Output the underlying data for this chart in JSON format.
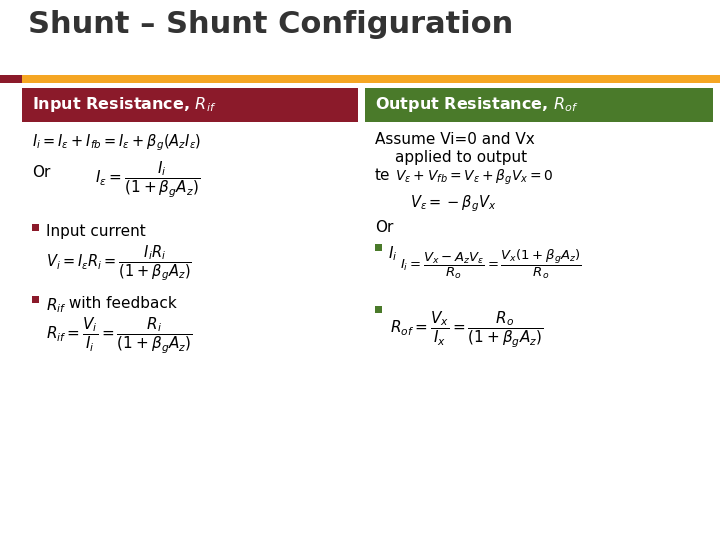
{
  "title": "Shunt – Shunt Configuration",
  "title_color": "#333333",
  "title_fontsize": 22,
  "bg_color": "#ffffff",
  "orange_bar_color": "#F5A623",
  "dark_red_bar_color": "#8B1A2A",
  "header_left_color": "#8B1A2A",
  "header_right_color": "#4A7A2A",
  "header_left_text": "Input Resistance, $\\mathit{R_{if}}$",
  "header_right_text": "Output Resistance, $\\mathit{R_{of}}$",
  "header_text_color": "#ffffff",
  "left_eq1": "$\\mathit{I_i = I_\\varepsilon + I_{fb} = I_\\varepsilon + \\beta_g(A_z I_\\varepsilon)}$",
  "left_or1": "Or",
  "left_eq2": "$\\mathit{I_\\varepsilon = \\dfrac{I_i}{(1+\\beta_g A_z)}}$",
  "left_bullet1": "Input current",
  "left_eq3": "$\\mathit{V_i = I_\\varepsilon R_i = \\dfrac{I_i R_i}{(1+\\beta_g A_z)}}$",
  "left_bullet2_a": "$\\mathit{R_{if}}$",
  "left_bullet2_b": " with feedback",
  "left_eq4": "$\\mathit{R_{if} = \\dfrac{V_i}{I_i} = \\dfrac{R_i}{(1+\\beta_g A_z)}}$",
  "right_text1": "Assume Vi=0 and Vx",
  "right_text2": "applied to output",
  "right_text3": "te",
  "right_eq1": "$\\mathit{V_\\varepsilon + V_{fb} = V_\\varepsilon + \\beta_g V_x = 0}$",
  "right_eq2": "$\\mathit{V_\\varepsilon = -\\beta_g V_x}$",
  "right_or": "Or",
  "right_bullet1a": "$\\mathit{I_i}$",
  "right_eq3": "$\\mathit{I_i = \\dfrac{V_x - A_z V_\\varepsilon}{R_o} = \\dfrac{V_x(1+\\beta_g A_z)}{R_o}}$",
  "right_eq4": "$\\mathit{R_{of} = \\dfrac{V_x}{I_x} = \\dfrac{R_o}{(1+\\beta_g A_z)}}$",
  "bullet_color_left": "#8B1A2A",
  "bullet_color_right": "#4A7A2A"
}
